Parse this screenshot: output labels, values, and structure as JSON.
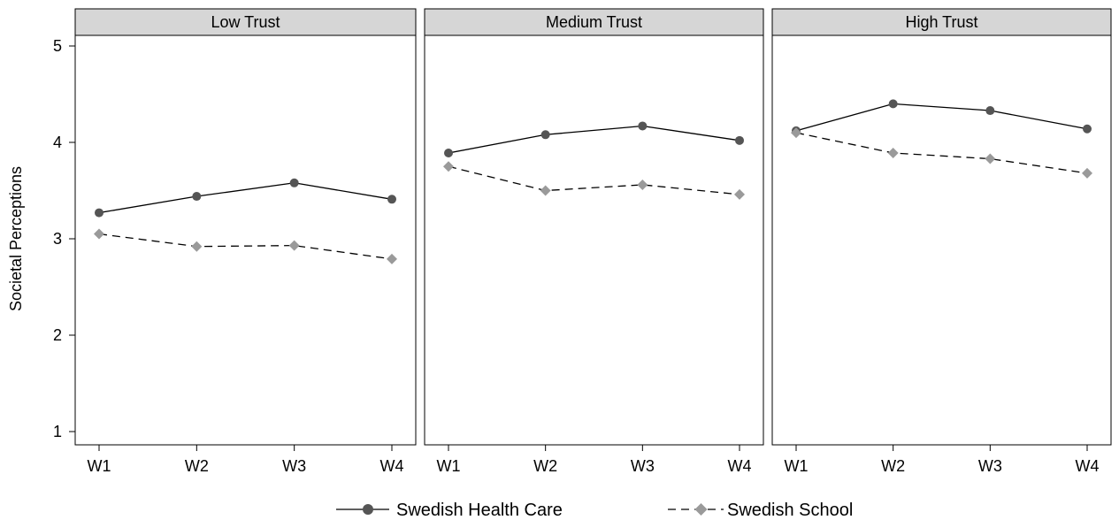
{
  "chart_data": {
    "type": "line",
    "facet_by": "trust level",
    "ylabel": "Societal Perceptions",
    "ylim": [
      1,
      5
    ],
    "yticks": [
      1,
      2,
      3,
      4,
      5
    ],
    "categories": [
      "W1",
      "W2",
      "W3",
      "W4"
    ],
    "panels": [
      {
        "title": "Low Trust",
        "series": [
          {
            "name": "Swedish Health Care",
            "values": [
              3.27,
              3.44,
              3.58,
              3.41
            ]
          },
          {
            "name": "Swedish School",
            "values": [
              3.05,
              2.92,
              2.93,
              2.79
            ]
          }
        ]
      },
      {
        "title": "Medium Trust",
        "series": [
          {
            "name": "Swedish Health Care",
            "values": [
              3.89,
              4.08,
              4.17,
              4.02
            ]
          },
          {
            "name": "Swedish School",
            "values": [
              3.75,
              3.5,
              3.56,
              3.46
            ]
          }
        ]
      },
      {
        "title": "High Trust",
        "series": [
          {
            "name": "Swedish Health Care",
            "values": [
              4.12,
              4.4,
              4.33,
              4.14
            ]
          },
          {
            "name": "Swedish School",
            "values": [
              4.1,
              3.89,
              3.83,
              3.68
            ]
          }
        ]
      }
    ],
    "series_styles": [
      {
        "name": "Swedish Health Care",
        "line": "solid",
        "marker": "circle",
        "color": "#555555",
        "line_color": "#000000"
      },
      {
        "name": "Swedish School",
        "line": "dashed",
        "marker": "diamond",
        "color": "#9a9a9a",
        "line_color": "#000000"
      }
    ],
    "legend": {
      "position": "bottom",
      "entries": [
        "Swedish Health Care",
        "Swedish School"
      ]
    },
    "grid": false
  }
}
